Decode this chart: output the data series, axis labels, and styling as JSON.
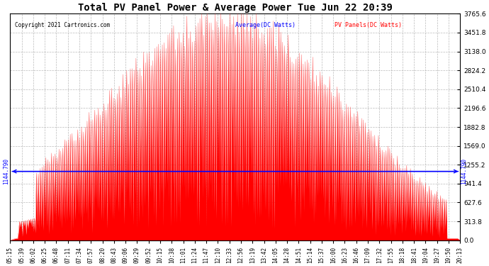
{
  "title": "Total PV Panel Power & Average Power Tue Jun 22 20:39",
  "copyright": "Copyright 2021 Cartronics.com",
  "legend_avg": "Average(DC Watts)",
  "legend_pv": "PV Panels(DC Watts)",
  "ymin": 0.0,
  "ymax": 3765.6,
  "ytick_step": 313.8,
  "avg_line_value": 1144.79,
  "avg_label": "1144.790",
  "background_color": "#ffffff",
  "grid_color": "#aaaaaa",
  "fill_color": "#ff0000",
  "avg_line_color": "#0000ff",
  "title_color": "#000000",
  "copyright_color": "#000000",
  "legend_avg_color": "#0000ff",
  "legend_pv_color": "#ff0000",
  "x_label_color": "#000000",
  "time_labels": [
    "05:15",
    "05:39",
    "06:02",
    "06:25",
    "06:48",
    "07:11",
    "07:34",
    "07:57",
    "08:20",
    "08:43",
    "09:06",
    "09:29",
    "09:52",
    "10:15",
    "10:38",
    "11:01",
    "11:24",
    "11:47",
    "12:10",
    "12:33",
    "12:56",
    "13:19",
    "13:42",
    "14:05",
    "14:28",
    "14:51",
    "15:14",
    "15:37",
    "16:00",
    "16:23",
    "16:46",
    "17:09",
    "17:32",
    "17:55",
    "18:18",
    "18:41",
    "19:04",
    "19:27",
    "19:50",
    "20:13"
  ],
  "figsize": [
    6.9,
    3.75
  ],
  "dpi": 100
}
